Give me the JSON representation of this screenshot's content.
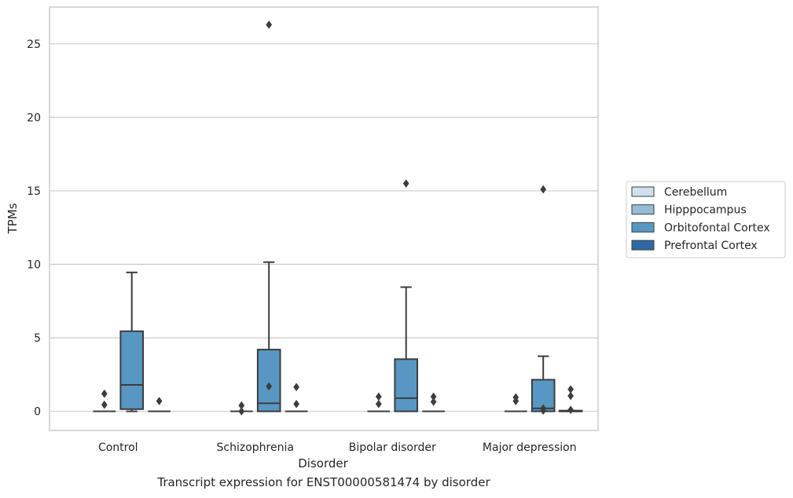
{
  "caption": "Transcript expression for ENST00000581474 by disorder",
  "chart_data": {
    "type": "box",
    "xlabel": "Disorder",
    "ylabel": "TPMs",
    "ylim": [
      -1.3,
      27.5
    ],
    "yticks": [
      0,
      5,
      10,
      15,
      20,
      25
    ],
    "grid": "horizontal",
    "legend_position": "right",
    "categories": [
      "Control",
      "Schizophrenia",
      "Bipolar disorder",
      "Major depression"
    ],
    "series": [
      {
        "name": "Cerebellum",
        "color": "#d1e0ee",
        "boxes": [
          null,
          null,
          null,
          null
        ]
      },
      {
        "name": "Hipppocampus",
        "color": "#95bcd8",
        "boxes": [
          {
            "q1": 0,
            "median": 0,
            "q3": 0,
            "whisker_low": 0,
            "whisker_high": 0,
            "outliers": [
              1.2,
              0.45
            ]
          },
          {
            "q1": 0,
            "median": 0,
            "q3": 0,
            "whisker_low": 0,
            "whisker_high": 0,
            "outliers": [
              0.4,
              0.0
            ]
          },
          {
            "q1": 0,
            "median": 0,
            "q3": 0,
            "whisker_low": 0,
            "whisker_high": 0,
            "outliers": [
              1.0,
              0.5
            ]
          },
          {
            "q1": 0,
            "median": 0,
            "q3": 0,
            "whisker_low": 0,
            "whisker_high": 0,
            "outliers": [
              0.95,
              0.7
            ]
          }
        ]
      },
      {
        "name": "Orbitofontal Cortex",
        "color": "#5897c4",
        "boxes": [
          {
            "q1": 0.15,
            "median": 1.8,
            "q3": 5.45,
            "whisker_low": 0,
            "whisker_high": 9.45,
            "outliers": []
          },
          {
            "q1": 0,
            "median": 0.55,
            "q3": 4.2,
            "whisker_low": 0,
            "whisker_high": 10.15,
            "outliers": [
              26.3,
              1.7
            ]
          },
          {
            "q1": 0,
            "median": 0.9,
            "q3": 3.55,
            "whisker_low": 0,
            "whisker_high": 8.45,
            "outliers": [
              15.5
            ]
          },
          {
            "q1": 0,
            "median": 0.2,
            "q3": 2.15,
            "whisker_low": 0,
            "whisker_high": 3.75,
            "outliers": [
              15.1,
              0.2,
              0.05
            ]
          }
        ]
      },
      {
        "name": "Prefrontal Cortex",
        "color": "#2d6aa5",
        "boxes": [
          {
            "q1": 0,
            "median": 0,
            "q3": 0,
            "whisker_low": 0,
            "whisker_high": 0,
            "outliers": [
              0.7
            ]
          },
          {
            "q1": 0,
            "median": 0,
            "q3": 0,
            "whisker_low": 0,
            "whisker_high": 0,
            "outliers": [
              1.65,
              0.5
            ]
          },
          {
            "q1": 0,
            "median": 0,
            "q3": 0,
            "whisker_low": 0,
            "whisker_high": 0,
            "outliers": [
              1.0,
              0.65
            ]
          },
          {
            "q1": 0,
            "median": 0,
            "q3": 0.05,
            "whisker_low": 0,
            "whisker_high": 0.05,
            "outliers": [
              1.5,
              1.05,
              0.1
            ]
          }
        ]
      }
    ]
  }
}
